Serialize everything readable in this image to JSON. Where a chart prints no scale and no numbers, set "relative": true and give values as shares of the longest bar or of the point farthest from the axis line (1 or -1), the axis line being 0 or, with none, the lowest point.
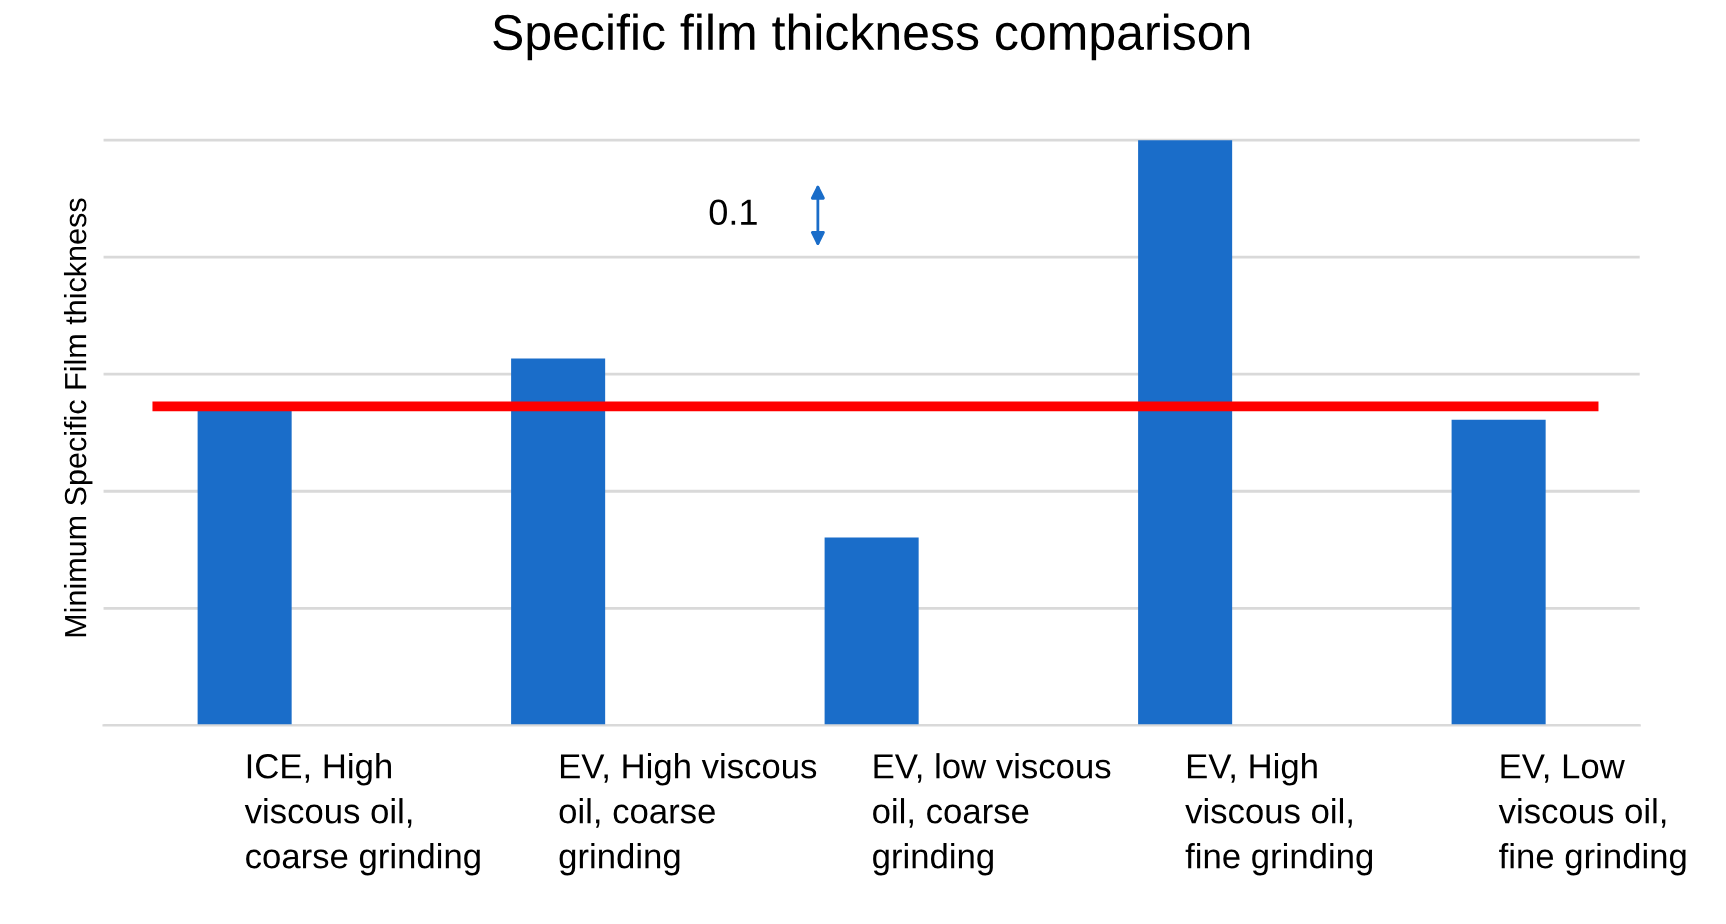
{
  "chart_data": {
    "type": "bar",
    "title": "Specific film thickness comparison",
    "ylabel": "Minimum Specific Film thickness",
    "categories": [
      "ICE, High\nviscous oil,\ncoarse grinding",
      "EV, High viscous\noil, coarse\ngrinding",
      "EV, low viscous\noil, coarse\ngrinding",
      "EV, High\nviscous oil,\nfine grinding",
      "EV, Low\nviscous oil,\nfine grinding"
    ],
    "values": [
      0.537,
      0.627,
      0.321,
      1,
      0.522
    ],
    "color": "#1a6dc9",
    "relative": true,
    "grid": "y",
    "ref_lines": [
      {
        "axis": "y",
        "value": 0.545,
        "color": "#ff0000"
      }
    ],
    "annotations": [
      "0.1"
    ]
  }
}
